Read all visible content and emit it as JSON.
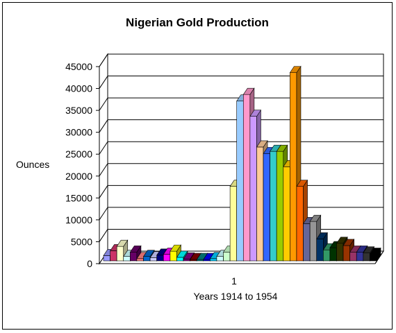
{
  "chart_data": {
    "type": "bar",
    "title": "Nigerian Gold Production",
    "xlabel": "Years 1914 to 1954",
    "ylabel": "Ounces",
    "categories": [
      "1"
    ],
    "ylim": [
      0,
      45000
    ],
    "yticks": [
      0,
      5000,
      10000,
      15000,
      20000,
      25000,
      30000,
      35000,
      40000,
      45000
    ],
    "grid": true,
    "legend": "none",
    "series": [
      {
        "values": [
          1200
        ]
      },
      {
        "values": [
          2300
        ]
      },
      {
        "values": [
          3300
        ]
      },
      {
        "values": [
          1000
        ]
      },
      {
        "values": [
          2000
        ]
      },
      {
        "values": [
          500
        ]
      },
      {
        "values": [
          1000
        ]
      },
      {
        "values": [
          700
        ]
      },
      {
        "values": [
          1300
        ]
      },
      {
        "values": [
          1500
        ]
      },
      {
        "values": [
          2200
        ]
      },
      {
        "values": [
          800
        ]
      },
      {
        "values": [
          400
        ]
      },
      {
        "values": [
          300
        ]
      },
      {
        "values": [
          300
        ]
      },
      {
        "values": [
          300
        ]
      },
      {
        "values": [
          500
        ]
      },
      {
        "values": [
          1000
        ]
      },
      {
        "values": [
          2000
        ]
      },
      {
        "values": [
          17000
        ]
      },
      {
        "values": [
          36500
        ]
      },
      {
        "values": [
          38000
        ]
      },
      {
        "values": [
          33000
        ]
      },
      {
        "values": [
          26000
        ]
      },
      {
        "values": [
          24500
        ]
      },
      {
        "values": [
          25000
        ]
      },
      {
        "values": [
          25000
        ]
      },
      {
        "values": [
          21500
        ]
      },
      {
        "values": [
          43000
        ]
      },
      {
        "values": [
          17000
        ]
      },
      {
        "values": [
          8500
        ]
      },
      {
        "values": [
          9000
        ]
      },
      {
        "values": [
          5000
        ]
      },
      {
        "values": [
          2500
        ]
      },
      {
        "values": [
          3000
        ]
      },
      {
        "values": [
          4000
        ]
      },
      {
        "values": [
          3500
        ]
      },
      {
        "values": [
          2000
        ]
      },
      {
        "values": [
          2000
        ]
      },
      {
        "values": [
          1800
        ]
      },
      {
        "values": [
          1500
        ]
      }
    ],
    "colors": [
      "#9999FF",
      "#CC3366",
      "#FFFFCC",
      "#CCFFFF",
      "#660066",
      "#FF8080",
      "#0066CC",
      "#CCCCFF",
      "#000080",
      "#FF00FF",
      "#FFFF00",
      "#00FFFF",
      "#800080",
      "#800000",
      "#008080",
      "#0000FF",
      "#00CCFF",
      "#CCFFFF",
      "#CCFFCC",
      "#FFFF99",
      "#99CCFF",
      "#FF99CC",
      "#CC99FF",
      "#FFCC99",
      "#3366FF",
      "#33CCCC",
      "#99CC00",
      "#FFCC00",
      "#FF9900",
      "#FF6600",
      "#666699",
      "#969696",
      "#003366",
      "#339966",
      "#003300",
      "#333300",
      "#993300",
      "#993366",
      "#333399",
      "#333333",
      "#000000"
    ]
  }
}
